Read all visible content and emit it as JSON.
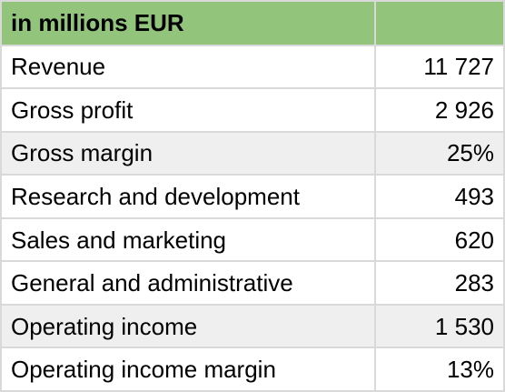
{
  "table": {
    "header": {
      "label": "in millions EUR",
      "value": ""
    },
    "rows": [
      {
        "label": "Revenue",
        "value": "11 727",
        "shaded": false
      },
      {
        "label": "Gross profit",
        "value": "2 926",
        "shaded": false
      },
      {
        "label": "Gross margin",
        "value": "25%",
        "shaded": true
      },
      {
        "label": "Research and development",
        "value": "493",
        "shaded": false
      },
      {
        "label": "Sales and marketing",
        "value": "620",
        "shaded": false
      },
      {
        "label": "General and administrative",
        "value": "283",
        "shaded": false
      },
      {
        "label": "Operating income",
        "value": "1 530",
        "shaded": true
      },
      {
        "label": "Operating income margin",
        "value": "13%",
        "shaded": false
      }
    ]
  },
  "colors": {
    "header_background": "#92c47c",
    "shaded_row_background": "#efefef",
    "grid_line": "#d9d9d9"
  }
}
